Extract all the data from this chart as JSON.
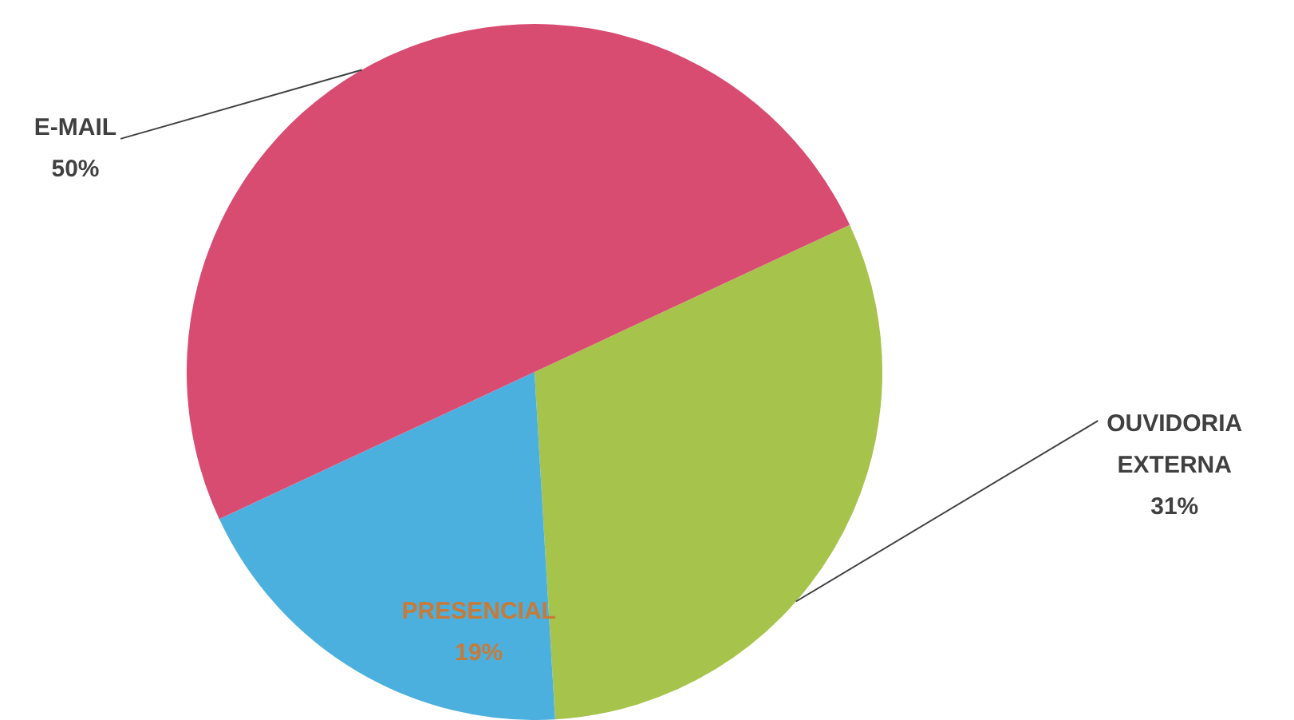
{
  "chart_data": {
    "type": "pie",
    "categories": [
      "OUVIDORIA EXTERNA",
      "PRESENCIAL",
      "E-MAIL"
    ],
    "values": [
      31,
      19,
      50
    ],
    "value_labels": [
      "31%",
      "19%",
      "50%"
    ],
    "colors": [
      "#a6c34c",
      "#4cb0de",
      "#d94c72"
    ],
    "legend": false
  }
}
